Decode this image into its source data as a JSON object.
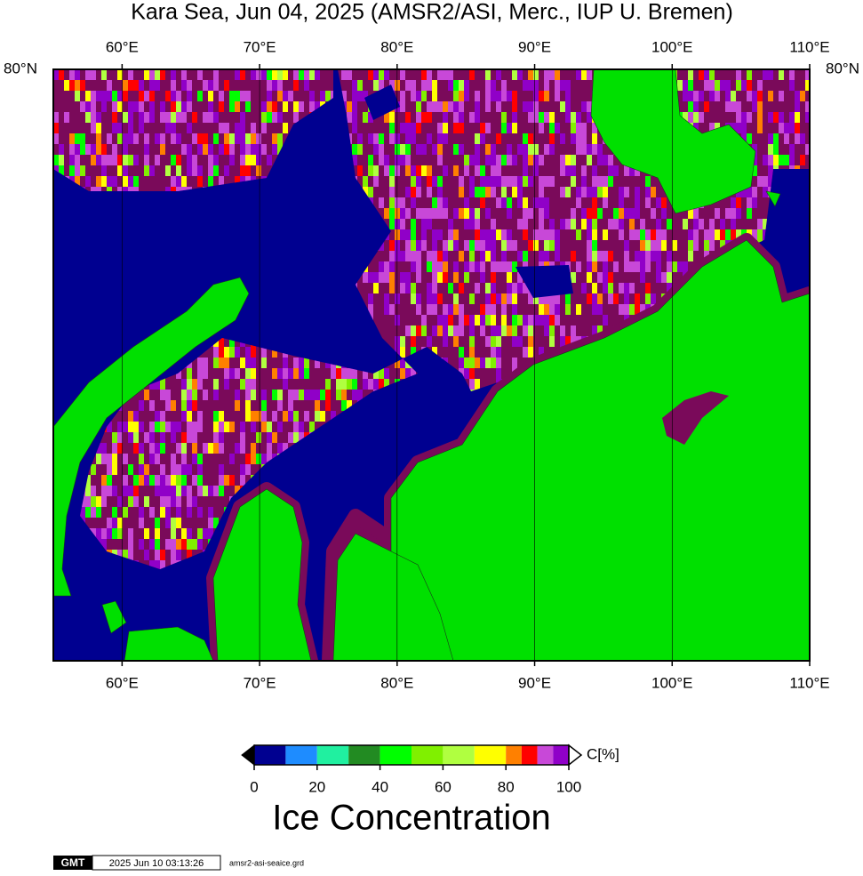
{
  "title": "Kara Sea, Jun 04, 2025 (AMSR2/ASI, Merc., IUP U. Bremen)",
  "map": {
    "xlim": [
      55,
      110
    ],
    "xticks": [
      {
        "value": 60,
        "label": "60°E"
      },
      {
        "value": 70,
        "label": "70°E"
      },
      {
        "value": 80,
        "label": "80°E"
      },
      {
        "value": 90,
        "label": "90°E"
      },
      {
        "value": 100,
        "label": "100°E"
      },
      {
        "value": 110,
        "label": "110°E"
      }
    ],
    "lat_label": {
      "value": 80,
      "label": "80°N"
    }
  },
  "colorbar": {
    "bins": [
      0,
      10,
      20,
      30,
      40,
      50,
      60,
      70,
      80,
      85,
      90,
      95,
      100
    ],
    "colors": [
      "#000090",
      "#1e8cff",
      "#20f0a0",
      "#228b22",
      "#00ff00",
      "#80f000",
      "#b0ff40",
      "#ffff00",
      "#ff8000",
      "#ff0000",
      "#c848d8",
      "#9000c8"
    ],
    "ticks": [
      0,
      20,
      40,
      60,
      80,
      100
    ],
    "unit": "C[%]",
    "label": "Ice Concentration"
  },
  "footer": {
    "logo": "GMT",
    "timestamp": "2025 Jun 10 03:13:26",
    "file": "amsr2-asi-seaice.grd"
  }
}
